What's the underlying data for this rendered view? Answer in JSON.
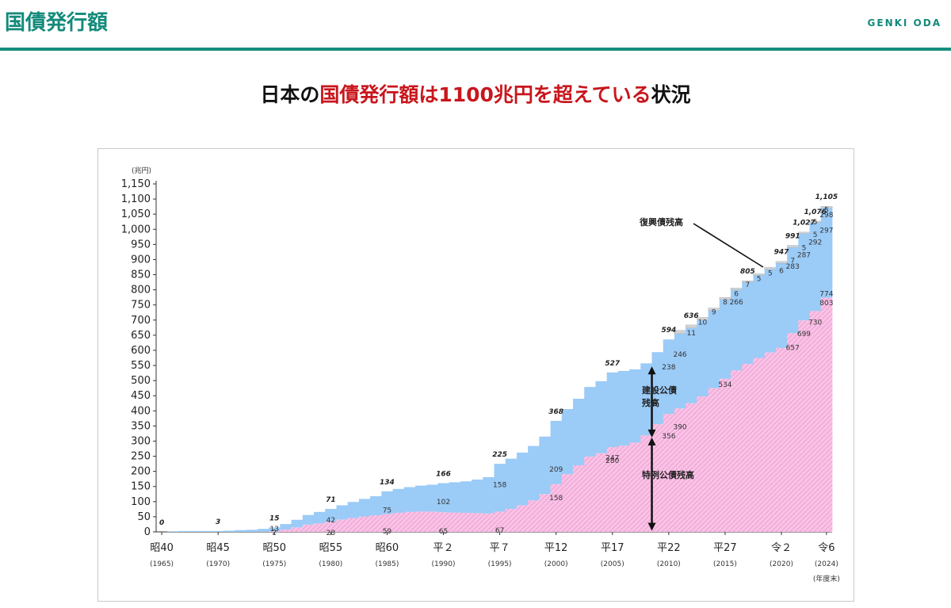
{
  "header": {
    "title": "国債発行額",
    "brand": "GENKI ODA"
  },
  "headline": {
    "part1": "日本の",
    "part2": "国債発行額は1100兆円を超えている",
    "part3": "状況"
  },
  "chart_data": {
    "type": "area",
    "unit_label": "(兆円)",
    "ylim": [
      0,
      1150
    ],
    "y_ticks": [
      0,
      50,
      100,
      150,
      200,
      250,
      300,
      350,
      400,
      450,
      500,
      550,
      600,
      650,
      700,
      750,
      800,
      850,
      900,
      950,
      1000,
      1050,
      1100,
      1150
    ],
    "x_ticks": [
      {
        "year": 1965,
        "label": "昭40",
        "sub": "(1965)"
      },
      {
        "year": 1970,
        "label": "昭45",
        "sub": "(1970)"
      },
      {
        "year": 1975,
        "label": "昭50",
        "sub": "(1975)"
      },
      {
        "year": 1980,
        "label": "昭55",
        "sub": "(1980)"
      },
      {
        "year": 1985,
        "label": "昭60",
        "sub": "(1985)"
      },
      {
        "year": 1990,
        "label": "平２",
        "sub": "(1990)"
      },
      {
        "year": 1995,
        "label": "平７",
        "sub": "(1995)"
      },
      {
        "year": 2000,
        "label": "平12",
        "sub": "(2000)"
      },
      {
        "year": 2005,
        "label": "平17",
        "sub": "(2005)"
      },
      {
        "year": 2010,
        "label": "平22",
        "sub": "(2010)"
      },
      {
        "year": 2015,
        "label": "平27",
        "sub": "(2015)"
      },
      {
        "year": 2020,
        "label": "令２",
        "sub": "(2020)"
      },
      {
        "year": 2024,
        "label": "令6",
        "sub": "(2024)"
      }
    ],
    "x_unit": "(年度末)",
    "series": [
      {
        "name": "特例公債残高",
        "color": "#f7b3de",
        "values": [
          0,
          0,
          0,
          0,
          0,
          0,
          0,
          0,
          0,
          0,
          2,
          8,
          15,
          24,
          28,
          34,
          41,
          46,
          51,
          55,
          59,
          63,
          66,
          67,
          67,
          65,
          64,
          63,
          62,
          61,
          67,
          76,
          88,
          104,
          125,
          158,
          191,
          220,
          249,
          260,
          280,
          285,
          295,
          319,
          356,
          390,
          408,
          425,
          448,
          475,
          506,
          534,
          555,
          575,
          593,
          608,
          657,
          699,
          730,
          774,
          803
        ]
      },
      {
        "name": "建設公債残高",
        "color": "#9bcbf7",
        "values": [
          0,
          2,
          3,
          3,
          3,
          3,
          4,
          6,
          7,
          10,
          13,
          18,
          25,
          32,
          38,
          42,
          47,
          53,
          58,
          63,
          75,
          79,
          82,
          86,
          89,
          96,
          100,
          104,
          111,
          120,
          158,
          166,
          174,
          180,
          190,
          209,
          215,
          220,
          230,
          238,
          247,
          247,
          242,
          238,
          238,
          246,
          247,
          249,
          252,
          257,
          262,
          266,
          270,
          273,
          275,
          280,
          283,
          287,
          292,
          297,
          298
        ]
      },
      {
        "name": "復興債残高",
        "color": "#cfd3d6",
        "values": [
          0,
          0,
          0,
          0,
          0,
          0,
          0,
          0,
          0,
          0,
          0,
          0,
          0,
          0,
          0,
          0,
          0,
          0,
          0,
          0,
          0,
          0,
          0,
          0,
          0,
          0,
          0,
          0,
          0,
          0,
          0,
          0,
          0,
          0,
          0,
          0,
          0,
          0,
          0,
          0,
          0,
          0,
          0,
          0,
          0,
          0,
          11,
          10,
          9,
          8,
          7,
          6,
          5,
          5,
          6,
          6,
          7,
          5,
          5,
          5,
          5
        ]
      }
    ],
    "total_labels": [
      {
        "year": 1965,
        "text": "0"
      },
      {
        "year": 1970,
        "text": "3"
      },
      {
        "year": 1975,
        "text": "15"
      },
      {
        "year": 1980,
        "text": "71"
      },
      {
        "year": 1985,
        "text": "134"
      },
      {
        "year": 1990,
        "text": "166"
      },
      {
        "year": 1995,
        "text": "225"
      },
      {
        "year": 2000,
        "text": "368"
      },
      {
        "year": 2005,
        "text": "527"
      },
      {
        "year": 2010,
        "text": "594"
      },
      {
        "year": 2012,
        "text": "636"
      },
      {
        "year": 2017,
        "text": "805"
      },
      {
        "year": 2020,
        "text": "947"
      },
      {
        "year": 2021,
        "text": "991"
      },
      {
        "year": 2022,
        "text": "1,027"
      },
      {
        "year": 2023,
        "text": "1,076"
      },
      {
        "year": 2024,
        "text": "1,105"
      }
    ],
    "value_labels": [
      {
        "year": 1975,
        "v": 13,
        "text": "13",
        "pos": "in"
      },
      {
        "year": 1975,
        "v": 1,
        "text": "2",
        "pos": "in"
      },
      {
        "year": 1980,
        "v": 42,
        "text": "42",
        "pos": "in"
      },
      {
        "year": 1980,
        "v": 0,
        "text": "28",
        "pos": "in"
      },
      {
        "year": 1985,
        "v": 75,
        "text": "75",
        "pos": "in"
      },
      {
        "year": 1985,
        "v": 5,
        "text": "59",
        "pos": "in"
      },
      {
        "year": 1990,
        "v": 102,
        "text": "102",
        "pos": "in"
      },
      {
        "year": 1990,
        "v": 5,
        "text": "65",
        "pos": "in"
      },
      {
        "year": 1995,
        "v": 158,
        "text": "158",
        "pos": "in"
      },
      {
        "year": 1995,
        "v": 8,
        "text": "67",
        "pos": "in"
      },
      {
        "year": 2000,
        "v": 209,
        "text": "209",
        "pos": "in"
      },
      {
        "year": 2000,
        "v": 115,
        "text": "158",
        "pos": "in"
      },
      {
        "year": 2005,
        "v": 247,
        "text": "247",
        "pos": "in"
      },
      {
        "year": 2005,
        "v": 238,
        "text": "280",
        "pos": "in"
      },
      {
        "year": 2010,
        "v": 547,
        "text": "238",
        "pos": "in"
      },
      {
        "year": 2010,
        "v": 320,
        "text": "356",
        "pos": "in"
      },
      {
        "year": 2011,
        "v": 590,
        "text": "246",
        "pos": "in"
      },
      {
        "year": 2011,
        "v": 350,
        "text": "390",
        "pos": "in"
      },
      {
        "year": 2012,
        "v": 660,
        "text": "11",
        "pos": "in"
      },
      {
        "year": 2013,
        "v": 695,
        "text": "10",
        "pos": "in"
      },
      {
        "year": 2014,
        "v": 730,
        "text": "9",
        "pos": "in"
      },
      {
        "year": 2015,
        "v": 762,
        "text": "8",
        "pos": "in"
      },
      {
        "year": 2015,
        "v": 490,
        "text": "534",
        "pos": "in"
      },
      {
        "year": 2016,
        "v": 762,
        "text": "266",
        "pos": "in"
      },
      {
        "year": 2016,
        "v": 790,
        "text": "6",
        "pos": "in"
      },
      {
        "year": 2017,
        "v": 820,
        "text": "7",
        "pos": "in"
      },
      {
        "year": 2018,
        "v": 840,
        "text": "5",
        "pos": "in"
      },
      {
        "year": 2019,
        "v": 858,
        "text": "5",
        "pos": "in"
      },
      {
        "year": 2020,
        "v": 866,
        "text": "6",
        "pos": "in"
      },
      {
        "year": 2021,
        "v": 900,
        "text": "7",
        "pos": "in"
      },
      {
        "year": 2021,
        "v": 880,
        "text": "283",
        "pos": "in"
      },
      {
        "year": 2021,
        "v": 612,
        "text": "657",
        "pos": "in"
      },
      {
        "year": 2022,
        "v": 942,
        "text": "5",
        "pos": "in"
      },
      {
        "year": 2022,
        "v": 918,
        "text": "287",
        "pos": "in"
      },
      {
        "year": 2022,
        "v": 658,
        "text": "699",
        "pos": "in"
      },
      {
        "year": 2023,
        "v": 985,
        "text": "5",
        "pos": "in"
      },
      {
        "year": 2023,
        "v": 960,
        "text": "292",
        "pos": "in"
      },
      {
        "year": 2023,
        "v": 695,
        "text": "730",
        "pos": "in"
      },
      {
        "year": 2023,
        "v": 1027,
        "text": "5",
        "pos": "in"
      },
      {
        "year": 2024,
        "v": 1000,
        "text": "297",
        "pos": "in"
      },
      {
        "year": 2024,
        "v": 1068,
        "text": "5",
        "pos": "in"
      },
      {
        "year": 2024,
        "v": 1050,
        "text": "298",
        "pos": "in"
      },
      {
        "year": 2024,
        "v": 790,
        "text": "774",
        "pos": "in"
      },
      {
        "year": 2024,
        "v": 760,
        "text": "803",
        "pos": "in"
      }
    ],
    "annotations": {
      "fukko": "復興債残高",
      "kensetsu_1": "建設公債",
      "kensetsu_2": "残高",
      "tokurei": "特例公債残高"
    }
  }
}
